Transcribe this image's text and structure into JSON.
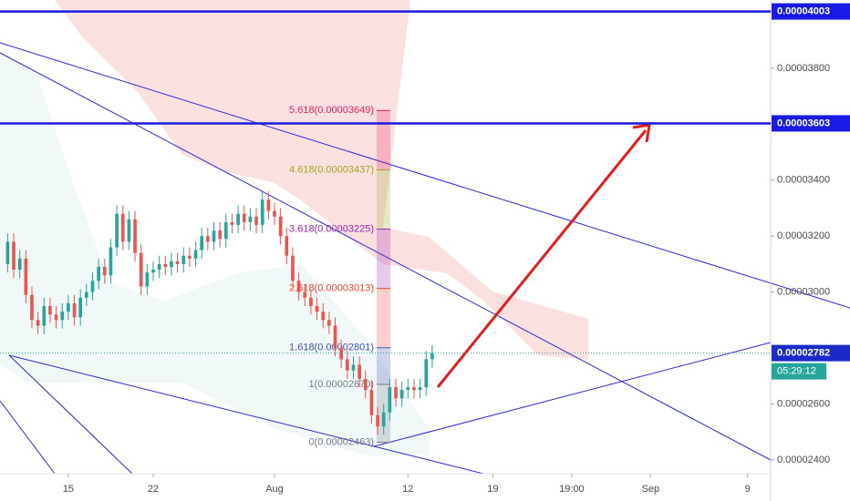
{
  "chart_data": {
    "type": "candlestick",
    "candles": {
      "open": [
        3.1e-05,
        3.18e-05,
        3.08e-05,
        3.12e-05,
        2.99e-05,
        2.9e-05,
        2.88e-05,
        2.95e-05,
        2.92e-05,
        2.9e-05,
        2.93e-05,
        2.96e-05,
        2.91e-05,
        2.98e-05,
        3e-05,
        3.04e-05,
        3.09e-05,
        3.06e-05,
        3.16e-05,
        3.28e-05,
        3.18e-05,
        3.26e-05,
        3.14e-05,
        3.02e-05,
        3.07e-05,
        3.08e-05,
        3.1e-05,
        3.09e-05,
        3.11e-05,
        3.1e-05,
        3.13e-05,
        3.12e-05,
        3.15e-05,
        3.2e-05,
        3.18e-05,
        3.22e-05,
        3.19e-05,
        3.25e-05,
        3.24e-05,
        3.28e-05,
        3.25e-05,
        3.27e-05,
        3.24e-05,
        3.33e-05,
        3.29e-05,
        3.27e-05,
        3.2e-05,
        3.13e-05,
        3.04e-05,
        3e-05,
        2.98e-05,
        2.95e-05,
        2.93e-05,
        2.9e-05,
        2.88e-05,
        2.8e-05,
        2.76e-05,
        2.72e-05,
        2.74e-05,
        2.69e-05,
        2.65e-05,
        2.56e-05,
        2.52e-05,
        2.57e-05,
        2.66e-05,
        2.62e-05,
        2.65e-05,
        2.66e-05,
        2.65e-05,
        2.66e-05,
        2.76e-05
      ],
      "high": [
        3.21e-05,
        3.21e-05,
        3.15e-05,
        3.15e-05,
        3.02e-05,
        2.93e-05,
        2.98e-05,
        2.98e-05,
        2.95e-05,
        2.96e-05,
        2.99e-05,
        2.99e-05,
        3.01e-05,
        3.03e-05,
        3.07e-05,
        3.12e-05,
        3.12e-05,
        3.19e-05,
        3.31e-05,
        3.31e-05,
        3.29e-05,
        3.29e-05,
        3.17e-05,
        3.1e-05,
        3.11e-05,
        3.13e-05,
        3.13e-05,
        3.14e-05,
        3.14e-05,
        3.16e-05,
        3.16e-05,
        3.18e-05,
        3.23e-05,
        3.23e-05,
        3.25e-05,
        3.25e-05,
        3.28e-05,
        3.28e-05,
        3.31e-05,
        3.31e-05,
        3.3e-05,
        3.3e-05,
        3.36e-05,
        3.36e-05,
        3.32e-05,
        3.3e-05,
        3.23e-05,
        3.16e-05,
        3.07e-05,
        3.03e-05,
        3.01e-05,
        2.98e-05,
        2.96e-05,
        2.93e-05,
        2.91e-05,
        2.83e-05,
        2.79e-05,
        2.77e-05,
        2.77e-05,
        2.72e-05,
        2.68e-05,
        2.59e-05,
        2.6e-05,
        2.69e-05,
        2.69e-05,
        2.68e-05,
        2.69e-05,
        2.69e-05,
        2.69e-05,
        2.79e-05,
        2.81e-05
      ],
      "low": [
        3.07e-05,
        3.05e-05,
        3.05e-05,
        2.96e-05,
        2.87e-05,
        2.85e-05,
        2.85e-05,
        2.89e-05,
        2.87e-05,
        2.87e-05,
        2.9e-05,
        2.88e-05,
        2.88e-05,
        2.95e-05,
        2.97e-05,
        3.01e-05,
        3.03e-05,
        3.03e-05,
        3.13e-05,
        3.15e-05,
        3.15e-05,
        3.11e-05,
        2.99e-05,
        2.99e-05,
        3.04e-05,
        3.05e-05,
        3.06e-05,
        3.06e-05,
        3.07e-05,
        3.07e-05,
        3.09e-05,
        3.09e-05,
        3.12e-05,
        3.15e-05,
        3.15e-05,
        3.16e-05,
        3.16e-05,
        3.21e-05,
        3.21e-05,
        3.22e-05,
        3.22e-05,
        3.21e-05,
        3.21e-05,
        3.26e-05,
        3.24e-05,
        3.17e-05,
        3.1e-05,
        3.01e-05,
        2.97e-05,
        2.95e-05,
        2.92e-05,
        2.9e-05,
        2.87e-05,
        2.85e-05,
        2.77e-05,
        2.73e-05,
        2.69e-05,
        2.69e-05,
        2.66e-05,
        2.62e-05,
        2.53e-05,
        2.49e-05,
        2.49e-05,
        2.54e-05,
        2.59e-05,
        2.59e-05,
        2.62e-05,
        2.62e-05,
        2.62e-05,
        2.63e-05,
        2.73e-05
      ],
      "close": [
        3.18e-05,
        3.08e-05,
        3.12e-05,
        2.99e-05,
        2.9e-05,
        2.88e-05,
        2.95e-05,
        2.92e-05,
        2.9e-05,
        2.93e-05,
        2.96e-05,
        2.91e-05,
        2.98e-05,
        3e-05,
        3.04e-05,
        3.09e-05,
        3.06e-05,
        3.16e-05,
        3.28e-05,
        3.18e-05,
        3.26e-05,
        3.14e-05,
        3.02e-05,
        3.07e-05,
        3.08e-05,
        3.1e-05,
        3.09e-05,
        3.11e-05,
        3.1e-05,
        3.13e-05,
        3.12e-05,
        3.15e-05,
        3.2e-05,
        3.18e-05,
        3.22e-05,
        3.19e-05,
        3.25e-05,
        3.24e-05,
        3.28e-05,
        3.25e-05,
        3.27e-05,
        3.24e-05,
        3.33e-05,
        3.29e-05,
        3.27e-05,
        3.2e-05,
        3.13e-05,
        3.04e-05,
        3e-05,
        2.98e-05,
        2.95e-05,
        2.93e-05,
        2.9e-05,
        2.88e-05,
        2.8e-05,
        2.76e-05,
        2.72e-05,
        2.74e-05,
        2.69e-05,
        2.65e-05,
        2.56e-05,
        2.52e-05,
        2.57e-05,
        2.66e-05,
        2.62e-05,
        2.65e-05,
        2.66e-05,
        2.65e-05,
        2.66e-05,
        2.76e-05,
        2.782e-05
      ]
    },
    "up_color": "#26a69a",
    "down_color": "#ef5350",
    "xlim": [
      -1.26,
      125.8
    ],
    "xticks": [
      {
        "value": 10,
        "label": "15"
      },
      {
        "value": 24,
        "label": "22"
      },
      {
        "value": 44,
        "label": "Aug"
      },
      {
        "value": 66,
        "label": "12"
      },
      {
        "value": 80,
        "label": "19"
      },
      {
        "value": 93,
        "label": "19:00"
      },
      {
        "value": 106,
        "label": "Sep"
      },
      {
        "value": 122,
        "label": "9"
      }
    ],
    "ylim": [
      2.351e-05,
      4.044e-05
    ],
    "yticks": [
      {
        "value": 3.8e-05,
        "label": "0.00003800"
      },
      {
        "value": 3.4e-05,
        "label": "0.00003400"
      },
      {
        "value": 3.2e-05,
        "label": "0.00003200"
      },
      {
        "value": 3e-05,
        "label": "0.00003000"
      },
      {
        "value": 2.6e-05,
        "label": "0.00002600"
      },
      {
        "value": 2.4e-05,
        "label": "0.00002400"
      }
    ],
    "horizontal_lines": [
      {
        "value": 4.003e-05,
        "label": "0.00004003"
      },
      {
        "value": 3.603e-05,
        "label": "0.00003603"
      }
    ],
    "line_color": "#1a1ae6",
    "current_price": {
      "value": 2.782e-05,
      "label": "0.00002782"
    },
    "countdown": "05:29:12",
    "fibonacci": [
      {
        "value": 3.649e-05,
        "label": "5.618(0.00003649)",
        "color": "#e91e63"
      },
      {
        "value": 3.437e-05,
        "label": "4.618(0.00003437)",
        "color": "#9aa71f"
      },
      {
        "value": 3.225e-05,
        "label": "3.618(0.00003225)",
        "color": "#9c27b0"
      },
      {
        "value": 3.013e-05,
        "label": "2.618(0.00003013)",
        "color": "#f44336"
      },
      {
        "value": 2.801e-05,
        "label": "1.618(0.00002801)",
        "color": "#3f51b5"
      },
      {
        "value": 2.67e-05,
        "label": "1(0.00002670)",
        "color": "#787b86"
      },
      {
        "value": 2.463e-05,
        "label": "0(0.00002463)",
        "color": "#787b86"
      }
    ]
  }
}
